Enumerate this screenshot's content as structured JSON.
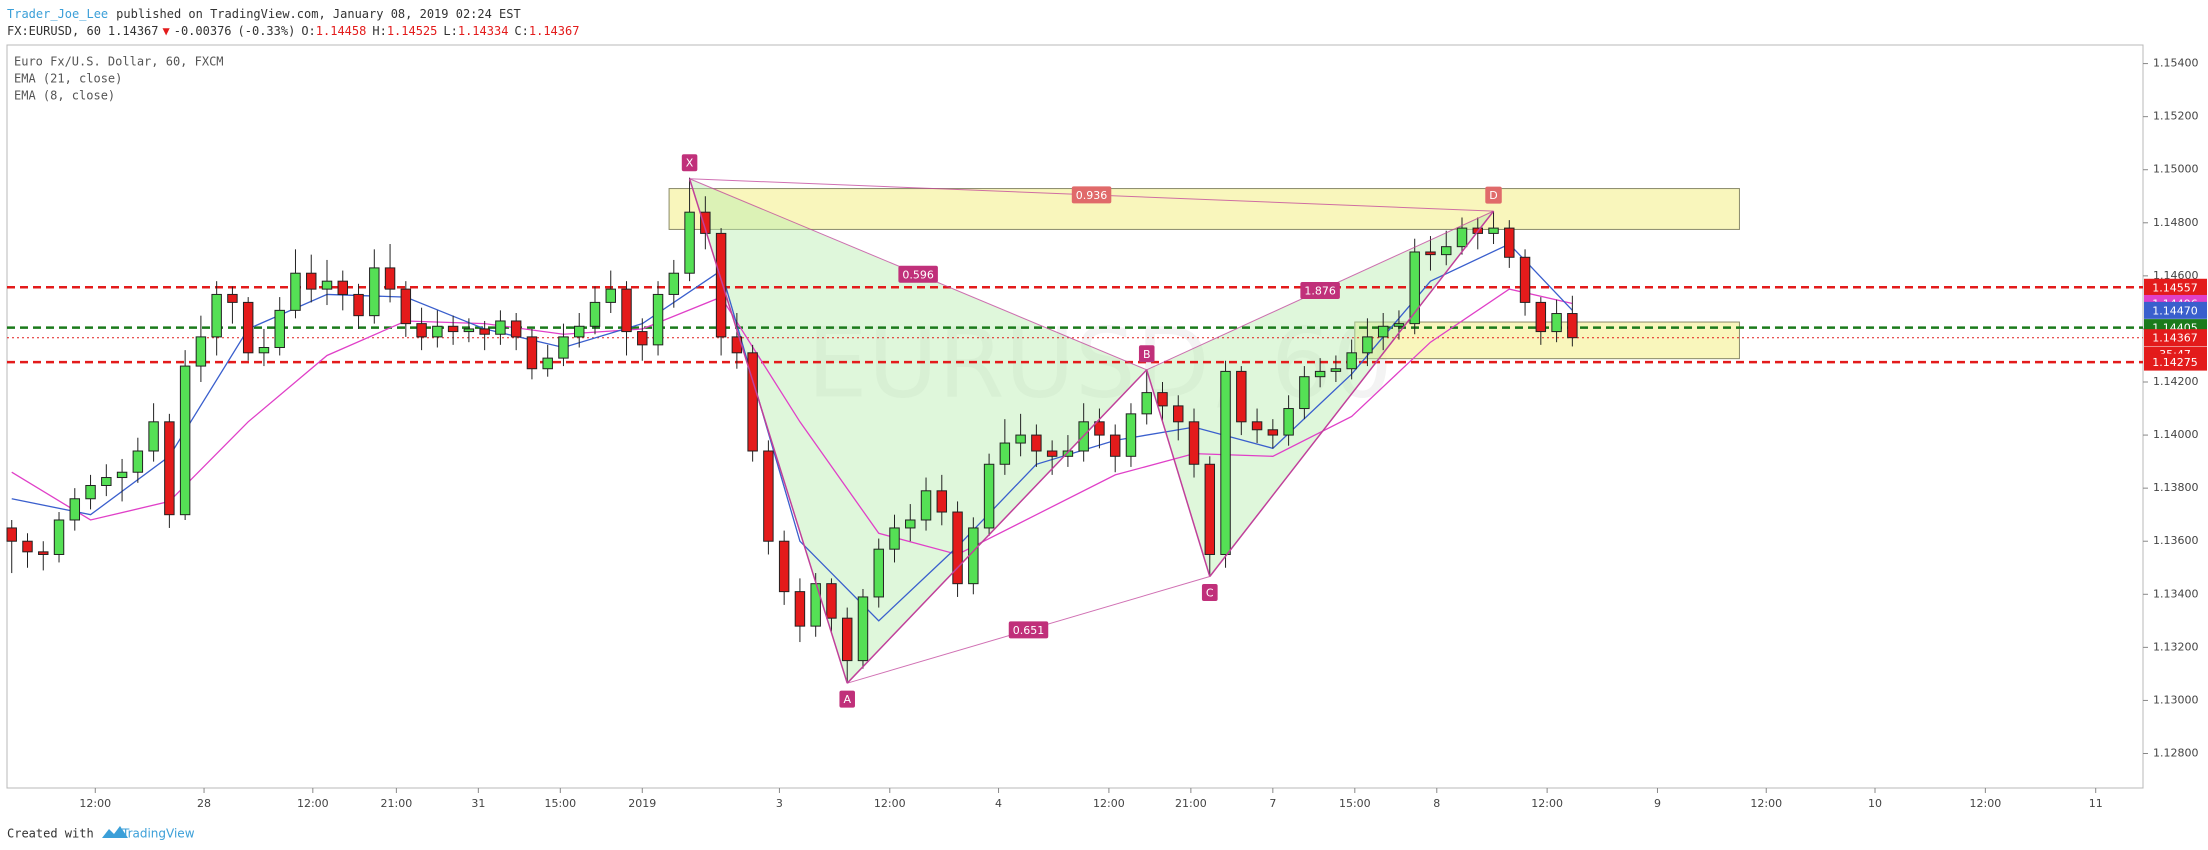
{
  "chart_data": {
    "type": "candlestick",
    "header": {
      "author": "Trader_Joe_Lee",
      "published": "published on TradingView.com, January 08, 2019 02:24 EST",
      "symbol": "FX:EURUSD, 60",
      "direction": "▼",
      "change": -0.00376,
      "change_percent": "(-0.33%)",
      "ohlc_labels": [
        "O:",
        "H:",
        "L:",
        "C:"
      ]
    },
    "legend": {
      "title": "Euro Fx/U.S. Dollar, 60, FXCM"
    },
    "watermark": "EURUSD, 60",
    "footer": {
      "text": "Created with",
      "brand": "TradingView"
    },
    "up_color": "#55e055",
    "down_color": "#e41b1b",
    "ylim": [
      1.1267,
      1.1547
    ],
    "yticks": [
      {
        "value": 1.128,
        "label": "1.12800"
      },
      {
        "value": 1.13,
        "label": "1.13000"
      },
      {
        "value": 1.132,
        "label": "1.13200"
      },
      {
        "value": 1.134,
        "label": "1.13400"
      },
      {
        "value": 1.136,
        "label": "1.13600"
      },
      {
        "value": 1.138,
        "label": "1.13800"
      },
      {
        "value": 1.14,
        "label": "1.14000"
      },
      {
        "value": 1.142,
        "label": "1.14200"
      },
      {
        "value": 1.144,
        "label": "1.14400"
      },
      {
        "value": 1.146,
        "label": "1.14600"
      },
      {
        "value": 1.148,
        "label": "1.14800"
      },
      {
        "value": 1.15,
        "label": "1.15000"
      },
      {
        "value": 1.152,
        "label": "1.15200"
      },
      {
        "value": 1.154,
        "label": "1.15400"
      }
    ],
    "xlim": [
      -0.3,
      135.2
    ],
    "xticks": [
      {
        "value": 5.3,
        "label": "12:00"
      },
      {
        "value": 12.2,
        "label": "28"
      },
      {
        "value": 19.1,
        "label": "12:00"
      },
      {
        "value": 24.4,
        "label": "21:00"
      },
      {
        "value": 29.6,
        "label": "31"
      },
      {
        "value": 34.8,
        "label": "15:00"
      },
      {
        "value": 40,
        "label": "2019"
      },
      {
        "value": 48.7,
        "label": "3"
      },
      {
        "value": 55.7,
        "label": "12:00"
      },
      {
        "value": 62.6,
        "label": "4"
      },
      {
        "value": 69.6,
        "label": "12:00"
      },
      {
        "value": 74.8,
        "label": "21:00"
      },
      {
        "value": 80,
        "label": "7"
      },
      {
        "value": 85.2,
        "label": "15:00"
      },
      {
        "value": 90.4,
        "label": "8"
      },
      {
        "value": 97.4,
        "label": "12:00"
      },
      {
        "value": 104.4,
        "label": "9"
      },
      {
        "value": 111.3,
        "label": "12:00"
      },
      {
        "value": 118.2,
        "label": "10"
      },
      {
        "value": 125.2,
        "label": "12:00"
      },
      {
        "value": 132.2,
        "label": "11"
      }
    ],
    "x": [
      0,
      1,
      2,
      3,
      4,
      5,
      6,
      7,
      8,
      9,
      10,
      11,
      12,
      13,
      14,
      15,
      16,
      17,
      18,
      19,
      20,
      21,
      22,
      23,
      24,
      25,
      26,
      27,
      28,
      29,
      30,
      31,
      32,
      33,
      34,
      35,
      36,
      37,
      38,
      39,
      40,
      41,
      42,
      43,
      44,
      45,
      46,
      47,
      48,
      49,
      50,
      51,
      52,
      53,
      54,
      55,
      56,
      57,
      58,
      59,
      60,
      61,
      62,
      63,
      64,
      65,
      66,
      67,
      68,
      69,
      70,
      71,
      72,
      73,
      74,
      75,
      76,
      77,
      78,
      79,
      80,
      81,
      82,
      83,
      84,
      85,
      86,
      87,
      88,
      89,
      90,
      91,
      92,
      93,
      94,
      95,
      96,
      97,
      98,
      99
    ],
    "ohlc": [
      [
        1.1365,
        1.1368,
        1.1348,
        1.136
      ],
      [
        1.136,
        1.1363,
        1.135,
        1.1356
      ],
      [
        1.1356,
        1.136,
        1.1349,
        1.1355
      ],
      [
        1.1355,
        1.1371,
        1.1352,
        1.1368
      ],
      [
        1.1368,
        1.138,
        1.1364,
        1.1376
      ],
      [
        1.1376,
        1.1385,
        1.1372,
        1.1381
      ],
      [
        1.1381,
        1.1389,
        1.1377,
        1.1384
      ],
      [
        1.1384,
        1.1391,
        1.1375,
        1.1386
      ],
      [
        1.1386,
        1.1399,
        1.1382,
        1.1394
      ],
      [
        1.1394,
        1.1412,
        1.139,
        1.1405
      ],
      [
        1.1405,
        1.1408,
        1.1365,
        1.137
      ],
      [
        1.137,
        1.1432,
        1.1368,
        1.1426
      ],
      [
        1.1426,
        1.1445,
        1.142,
        1.1437
      ],
      [
        1.1437,
        1.1458,
        1.143,
        1.1453
      ],
      [
        1.1453,
        1.1456,
        1.1442,
        1.145
      ],
      [
        1.145,
        1.1452,
        1.1428,
        1.1431
      ],
      [
        1.1431,
        1.144,
        1.1426,
        1.1433
      ],
      [
        1.1433,
        1.1452,
        1.143,
        1.1447
      ],
      [
        1.1447,
        1.147,
        1.1444,
        1.1461
      ],
      [
        1.1461,
        1.1468,
        1.145,
        1.1455
      ],
      [
        1.1455,
        1.1466,
        1.1449,
        1.1458
      ],
      [
        1.1458,
        1.1462,
        1.1447,
        1.1453
      ],
      [
        1.1453,
        1.1457,
        1.144,
        1.1445
      ],
      [
        1.1445,
        1.147,
        1.1442,
        1.1463
      ],
      [
        1.1463,
        1.1472,
        1.145,
        1.1455
      ],
      [
        1.1455,
        1.1458,
        1.1437,
        1.1442
      ],
      [
        1.1442,
        1.1448,
        1.1432,
        1.1437
      ],
      [
        1.1437,
        1.1447,
        1.1433,
        1.1441
      ],
      [
        1.1441,
        1.1445,
        1.1434,
        1.1439
      ],
      [
        1.1439,
        1.1444,
        1.1435,
        1.144
      ],
      [
        1.144,
        1.1443,
        1.1432,
        1.1438
      ],
      [
        1.1438,
        1.1447,
        1.1434,
        1.1443
      ],
      [
        1.1443,
        1.1446,
        1.1432,
        1.1437
      ],
      [
        1.1437,
        1.144,
        1.1421,
        1.1425
      ],
      [
        1.1425,
        1.1434,
        1.1422,
        1.1429
      ],
      [
        1.1429,
        1.1442,
        1.1426,
        1.1437
      ],
      [
        1.1437,
        1.1446,
        1.1433,
        1.1441
      ],
      [
        1.1441,
        1.1456,
        1.1438,
        1.145
      ],
      [
        1.145,
        1.1462,
        1.1446,
        1.1455
      ],
      [
        1.1455,
        1.1458,
        1.143,
        1.1439
      ],
      [
        1.1439,
        1.1444,
        1.1428,
        1.1434
      ],
      [
        1.1434,
        1.1458,
        1.143,
        1.1453
      ],
      [
        1.1453,
        1.1466,
        1.1448,
        1.1461
      ],
      [
        1.1461,
        1.1497,
        1.1458,
        1.1484
      ],
      [
        1.1484,
        1.149,
        1.147,
        1.1476
      ],
      [
        1.1476,
        1.1478,
        1.143,
        1.1437
      ],
      [
        1.1437,
        1.1446,
        1.1425,
        1.1431
      ],
      [
        1.1431,
        1.1434,
        1.139,
        1.1394
      ],
      [
        1.1394,
        1.1398,
        1.1355,
        1.136
      ],
      [
        1.136,
        1.1364,
        1.1336,
        1.1341
      ],
      [
        1.1341,
        1.1346,
        1.1322,
        1.1328
      ],
      [
        1.1328,
        1.1348,
        1.1324,
        1.1344
      ],
      [
        1.1344,
        1.1346,
        1.1326,
        1.1331
      ],
      [
        1.1331,
        1.1335,
        1.13065,
        1.1315
      ],
      [
        1.1315,
        1.1342,
        1.1312,
        1.1339
      ],
      [
        1.1339,
        1.1361,
        1.1335,
        1.1357
      ],
      [
        1.1357,
        1.137,
        1.1352,
        1.1365
      ],
      [
        1.1365,
        1.1374,
        1.136,
        1.1368
      ],
      [
        1.1368,
        1.1384,
        1.1364,
        1.1379
      ],
      [
        1.1379,
        1.1385,
        1.1366,
        1.1371
      ],
      [
        1.1371,
        1.1375,
        1.1339,
        1.1344
      ],
      [
        1.1344,
        1.1369,
        1.134,
        1.1365
      ],
      [
        1.1365,
        1.1393,
        1.1362,
        1.1389
      ],
      [
        1.1389,
        1.1406,
        1.1385,
        1.1397
      ],
      [
        1.1397,
        1.1408,
        1.1392,
        1.14
      ],
      [
        1.14,
        1.1404,
        1.1388,
        1.1394
      ],
      [
        1.1394,
        1.1398,
        1.1385,
        1.1392
      ],
      [
        1.1392,
        1.14,
        1.1388,
        1.1394
      ],
      [
        1.1394,
        1.1412,
        1.139,
        1.1405
      ],
      [
        1.1405,
        1.141,
        1.1395,
        1.14
      ],
      [
        1.14,
        1.1404,
        1.1386,
        1.1392
      ],
      [
        1.1392,
        1.1412,
        1.1388,
        1.1408
      ],
      [
        1.1408,
        1.14246,
        1.1404,
        1.1416
      ],
      [
        1.1416,
        1.142,
        1.1405,
        1.1411
      ],
      [
        1.1411,
        1.1415,
        1.1398,
        1.1405
      ],
      [
        1.1405,
        1.141,
        1.1384,
        1.1389
      ],
      [
        1.1389,
        1.1392,
        1.13467,
        1.1355
      ],
      [
        1.1355,
        1.1428,
        1.135,
        1.1424
      ],
      [
        1.1424,
        1.1426,
        1.14,
        1.1405
      ],
      [
        1.1405,
        1.141,
        1.1397,
        1.1402
      ],
      [
        1.1402,
        1.1406,
        1.1395,
        1.14
      ],
      [
        1.14,
        1.1415,
        1.1396,
        1.141
      ],
      [
        1.141,
        1.1426,
        1.1406,
        1.1422
      ],
      [
        1.1422,
        1.1429,
        1.1418,
        1.1424
      ],
      [
        1.1424,
        1.143,
        1.142,
        1.1425
      ],
      [
        1.1425,
        1.1436,
        1.1421,
        1.1431
      ],
      [
        1.1431,
        1.1444,
        1.1426,
        1.1437
      ],
      [
        1.1437,
        1.1446,
        1.1432,
        1.1441
      ],
      [
        1.1441,
        1.1447,
        1.1436,
        1.1442
      ],
      [
        1.1442,
        1.1474,
        1.1438,
        1.1469
      ],
      [
        1.1469,
        1.1475,
        1.1462,
        1.1468
      ],
      [
        1.1468,
        1.1477,
        1.1464,
        1.1471
      ],
      [
        1.1471,
        1.1482,
        1.1468,
        1.1478
      ],
      [
        1.1478,
        1.1482,
        1.147,
        1.1476
      ],
      [
        1.1476,
        1.14844,
        1.1472,
        1.1478
      ],
      [
        1.1478,
        1.1481,
        1.1463,
        1.1467
      ],
      [
        1.1467,
        1.147,
        1.1445,
        1.145
      ],
      [
        1.145,
        1.1452,
        1.1434,
        1.1439
      ],
      [
        1.1439,
        1.1451,
        1.1435,
        1.14458
      ],
      [
        1.14458,
        1.14525,
        1.14334,
        1.14367
      ]
    ],
    "emas": [
      {
        "name": "EMA (21, close)",
        "color": "#e040c8",
        "x": [
          0,
          5,
          10,
          15,
          20,
          25,
          30,
          35,
          40,
          45,
          50,
          55,
          60,
          65,
          70,
          75,
          80,
          85,
          90,
          95,
          99
        ],
        "values": [
          1.1386,
          1.1368,
          1.1375,
          1.1405,
          1.143,
          1.1443,
          1.1442,
          1.1438,
          1.144,
          1.1452,
          1.1405,
          1.1363,
          1.1355,
          1.137,
          1.1385,
          1.1393,
          1.1392,
          1.1407,
          1.1435,
          1.1455,
          1.14496
        ]
      },
      {
        "name": "EMA (8, close)",
        "color": "#3a5fcd",
        "x": [
          0,
          5,
          10,
          15,
          20,
          25,
          30,
          35,
          40,
          45,
          50,
          55,
          60,
          65,
          70,
          75,
          80,
          85,
          90,
          95,
          99
        ],
        "values": [
          1.1376,
          1.137,
          1.1392,
          1.144,
          1.1453,
          1.1452,
          1.144,
          1.1433,
          1.1442,
          1.1462,
          1.136,
          1.133,
          1.1358,
          1.1389,
          1.1398,
          1.1403,
          1.1395,
          1.1423,
          1.1458,
          1.1472,
          1.1447
        ],
        "last_label": "1.14470"
      }
    ],
    "levels": [
      {
        "value": 1.14557,
        "color": "#e31b1b",
        "style": "dashed"
      },
      {
        "value": 1.14405,
        "color": "#1b7a1b",
        "style": "dashed"
      },
      {
        "value": 1.14367,
        "color": "#e31b1b",
        "style": "dotted",
        "countdown": "35:47"
      },
      {
        "value": 1.14275,
        "color": "#e31b1b",
        "style": "dashed"
      }
    ],
    "zones": [
      {
        "x": [
          41.7,
          109.6
        ],
        "y": [
          1.14775,
          1.14929
        ]
      },
      {
        "x": [
          85.2,
          109.6
        ],
        "y": [
          1.14288,
          1.14426
        ]
      }
    ],
    "pattern": {
      "points": [
        {
          "label": "X",
          "x": 43,
          "value": 1.14966
        },
        {
          "label": "A",
          "x": 53,
          "value": 1.13065
        },
        {
          "label": "B",
          "x": 72,
          "value": 1.14246
        },
        {
          "label": "C",
          "x": 76,
          "value": 1.13467
        },
        {
          "label": "D",
          "x": 94,
          "value": 1.14844
        }
      ],
      "ratios": [
        0.596,
        0.651,
        1.876,
        0.936
      ]
    }
  }
}
